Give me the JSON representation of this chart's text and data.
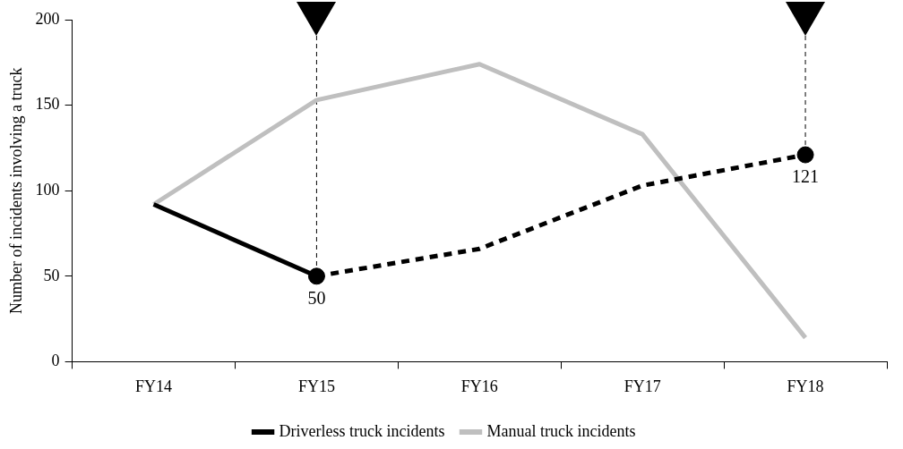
{
  "chart_data": {
    "type": "line",
    "ylabel": "Number of incidents involving a truck",
    "categories": [
      "FY14",
      "FY15",
      "FY16",
      "FY17",
      "FY18"
    ],
    "series": [
      {
        "name": "Driverless truck incidents",
        "color": "#000000",
        "values": [
          92,
          50,
          null,
          null,
          null
        ],
        "line_style": "solid"
      },
      {
        "color": "#000000",
        "values": [
          null,
          50,
          66,
          103,
          121
        ],
        "line_style": "dashed"
      },
      {
        "name": "Manual truck incidents",
        "color": "#bfbfbf",
        "values": [
          92,
          153,
          174,
          133,
          14
        ],
        "line_style": "solid"
      },
      {
        "type": "scatter",
        "color": "#000000",
        "x": [
          "FY15",
          "FY18"
        ],
        "values": [
          50,
          121
        ],
        "marker": "circle",
        "value_labels": [
          "50",
          "121"
        ]
      }
    ],
    "ref_lines": [
      {
        "axis": "x",
        "value": "FY15",
        "color": "#000000",
        "line_style": "dashed"
      },
      {
        "axis": "x",
        "value": "FY18",
        "color": "#000000",
        "line_style": "dashed"
      }
    ],
    "ylim": [
      0,
      200
    ],
    "yticks": [
      0,
      50,
      100,
      150,
      200
    ],
    "grid": false,
    "legend": "bottom",
    "marker": "none"
  }
}
